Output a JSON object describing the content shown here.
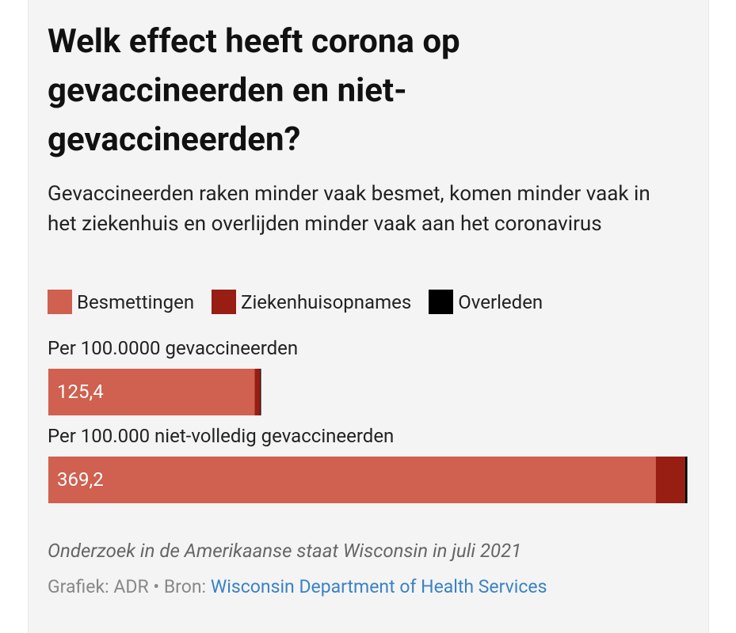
{
  "chart_data": {
    "type": "bar",
    "orientation": "horizontal",
    "stacked": true,
    "title": "Welk effect heeft corona op gevaccineerden en niet-gevaccineerden?",
    "subtitle": "Gevaccineerden raken minder vaak besmet, komen minder vaak in het ziekenhuis en overlijden minder vaak aan het coronavirus",
    "categories": [
      "Per 100.0000 gevaccineerden",
      "Per 100.000 niet-volledig gevaccineerden"
    ],
    "series": [
      {
        "name": "Besmettingen",
        "color": "#d0604f",
        "values": [
          125.4,
          369.2
        ],
        "value_labels": [
          "125,4",
          "369,2"
        ]
      },
      {
        "name": "Ziekenhuisopnames",
        "color": "#981d13",
        "values": [
          3.4,
          17.8
        ]
      },
      {
        "name": "Overleden",
        "color": "#000000",
        "values": [
          0.5,
          1.4
        ]
      }
    ],
    "xlim": [
      0,
      388.6
    ],
    "note": "Onderzoek in de Amerikaanse staat Wisconsin in juli 2021",
    "credit": "Grafiek: ADR • Bron:",
    "source": "Wisconsin Department of Health Services"
  }
}
